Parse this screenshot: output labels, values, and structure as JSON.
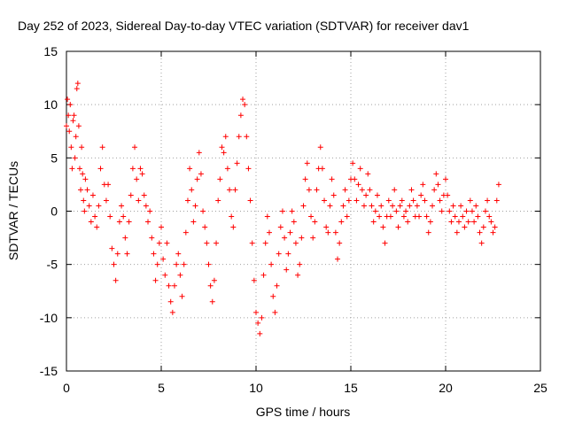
{
  "chart_data": {
    "type": "scatter",
    "title": "Day 252 of 2023, Sidereal Day-to-day VTEC variation (SDTVAR) for receiver dav1",
    "xlabel": "GPS time / hours",
    "ylabel": "SDTVAR / TECUs",
    "xlim": [
      0,
      25
    ],
    "ylim": [
      -15,
      15
    ],
    "xticks": [
      "0",
      "5",
      "10",
      "15",
      "20",
      "25"
    ],
    "yticks": [
      "-15",
      "-10",
      "-5",
      "0",
      "5",
      "10",
      "15"
    ],
    "grid": true,
    "marker": "+",
    "color": "#ff0000",
    "series": [
      {
        "name": "SDTVAR",
        "points": [
          [
            0.0,
            8.0
          ],
          [
            0.05,
            10.5
          ],
          [
            0.1,
            9.0
          ],
          [
            0.15,
            7.5
          ],
          [
            0.2,
            10.0
          ],
          [
            0.25,
            6.0
          ],
          [
            0.3,
            4.0
          ],
          [
            0.35,
            8.5
          ],
          [
            0.4,
            9.0
          ],
          [
            0.45,
            5.0
          ],
          [
            0.5,
            7.0
          ],
          [
            0.55,
            11.5
          ],
          [
            0.6,
            12.0
          ],
          [
            0.65,
            8.0
          ],
          [
            0.7,
            4.0
          ],
          [
            0.75,
            2.0
          ],
          [
            0.8,
            6.0
          ],
          [
            0.85,
            3.5
          ],
          [
            0.9,
            1.0
          ],
          [
            0.95,
            0.0
          ],
          [
            1.0,
            3.0
          ],
          [
            1.1,
            2.0
          ],
          [
            1.2,
            0.5
          ],
          [
            1.3,
            -1.0
          ],
          [
            1.4,
            1.5
          ],
          [
            1.5,
            -0.5
          ],
          [
            1.6,
            -1.5
          ],
          [
            1.7,
            0.5
          ],
          [
            1.8,
            4.0
          ],
          [
            1.9,
            6.0
          ],
          [
            2.0,
            2.5
          ],
          [
            2.1,
            1.0
          ],
          [
            2.2,
            2.5
          ],
          [
            2.3,
            -0.5
          ],
          [
            2.4,
            -3.5
          ],
          [
            2.5,
            -5.0
          ],
          [
            2.6,
            -6.5
          ],
          [
            2.7,
            -4.0
          ],
          [
            2.8,
            -1.0
          ],
          [
            2.9,
            0.5
          ],
          [
            3.0,
            -0.5
          ],
          [
            3.1,
            -2.5
          ],
          [
            3.2,
            -4.0
          ],
          [
            3.3,
            -1.0
          ],
          [
            3.4,
            1.5
          ],
          [
            3.5,
            4.0
          ],
          [
            3.6,
            6.0
          ],
          [
            3.7,
            3.0
          ],
          [
            3.8,
            1.0
          ],
          [
            3.9,
            4.0
          ],
          [
            4.0,
            3.5
          ],
          [
            4.1,
            1.5
          ],
          [
            4.2,
            0.5
          ],
          [
            4.3,
            -1.0
          ],
          [
            4.4,
            0.0
          ],
          [
            4.5,
            -2.5
          ],
          [
            4.6,
            -4.0
          ],
          [
            4.7,
            -6.5
          ],
          [
            4.8,
            -5.0
          ],
          [
            4.9,
            -3.0
          ],
          [
            5.0,
            -1.5
          ],
          [
            5.1,
            -4.5
          ],
          [
            5.2,
            -6.0
          ],
          [
            5.3,
            -3.0
          ],
          [
            5.4,
            -7.0
          ],
          [
            5.5,
            -8.5
          ],
          [
            5.6,
            -9.5
          ],
          [
            5.7,
            -7.0
          ],
          [
            5.8,
            -5.0
          ],
          [
            5.9,
            -4.0
          ],
          [
            6.0,
            -6.0
          ],
          [
            6.1,
            -8.0
          ],
          [
            6.2,
            -5.0
          ],
          [
            6.3,
            -2.0
          ],
          [
            6.4,
            1.0
          ],
          [
            6.5,
            4.0
          ],
          [
            6.6,
            2.0
          ],
          [
            6.7,
            -1.0
          ],
          [
            6.8,
            0.5
          ],
          [
            6.9,
            3.0
          ],
          [
            7.0,
            5.5
          ],
          [
            7.1,
            3.5
          ],
          [
            7.2,
            0.0
          ],
          [
            7.3,
            -1.5
          ],
          [
            7.4,
            -3.0
          ],
          [
            7.5,
            -5.0
          ],
          [
            7.6,
            -7.0
          ],
          [
            7.7,
            -8.5
          ],
          [
            7.8,
            -6.5
          ],
          [
            7.9,
            -3.0
          ],
          [
            8.0,
            1.0
          ],
          [
            8.1,
            3.0
          ],
          [
            8.2,
            6.0
          ],
          [
            8.3,
            5.5
          ],
          [
            8.4,
            7.0
          ],
          [
            8.5,
            4.0
          ],
          [
            8.6,
            2.0
          ],
          [
            8.7,
            -0.5
          ],
          [
            8.8,
            -1.5
          ],
          [
            8.9,
            2.0
          ],
          [
            9.0,
            4.5
          ],
          [
            9.1,
            7.0
          ],
          [
            9.2,
            9.0
          ],
          [
            9.3,
            10.5
          ],
          [
            9.4,
            10.0
          ],
          [
            9.5,
            7.0
          ],
          [
            9.6,
            4.0
          ],
          [
            9.7,
            1.0
          ],
          [
            9.8,
            -3.0
          ],
          [
            9.9,
            -6.5
          ],
          [
            10.0,
            -9.5
          ],
          [
            10.1,
            -10.5
          ],
          [
            10.2,
            -11.5
          ],
          [
            10.3,
            -10.0
          ],
          [
            10.4,
            -6.0
          ],
          [
            10.5,
            -3.0
          ],
          [
            10.6,
            -0.5
          ],
          [
            10.7,
            -2.0
          ],
          [
            10.8,
            -5.0
          ],
          [
            10.9,
            -8.0
          ],
          [
            11.0,
            -9.5
          ],
          [
            11.1,
            -7.0
          ],
          [
            11.2,
            -4.0
          ],
          [
            11.3,
            -1.5
          ],
          [
            11.4,
            0.0
          ],
          [
            11.5,
            -2.5
          ],
          [
            11.6,
            -5.5
          ],
          [
            11.7,
            -4.0
          ],
          [
            11.8,
            -2.0
          ],
          [
            11.9,
            0.0
          ],
          [
            12.0,
            -1.0
          ],
          [
            12.1,
            -3.0
          ],
          [
            12.2,
            -6.0
          ],
          [
            12.3,
            -5.0
          ],
          [
            12.4,
            -2.5
          ],
          [
            12.5,
            0.5
          ],
          [
            12.6,
            3.0
          ],
          [
            12.7,
            4.5
          ],
          [
            12.8,
            2.0
          ],
          [
            12.9,
            -0.5
          ],
          [
            13.0,
            -2.5
          ],
          [
            13.1,
            -1.0
          ],
          [
            13.2,
            2.0
          ],
          [
            13.3,
            4.0
          ],
          [
            13.4,
            6.0
          ],
          [
            13.5,
            4.0
          ],
          [
            13.6,
            1.0
          ],
          [
            13.7,
            -1.5
          ],
          [
            13.8,
            -2.0
          ],
          [
            13.9,
            0.5
          ],
          [
            14.0,
            3.0
          ],
          [
            14.1,
            1.5
          ],
          [
            14.2,
            -2.0
          ],
          [
            14.3,
            -4.5
          ],
          [
            14.4,
            -3.0
          ],
          [
            14.5,
            -1.0
          ],
          [
            14.6,
            0.5
          ],
          [
            14.7,
            2.0
          ],
          [
            14.8,
            -0.5
          ],
          [
            14.9,
            1.0
          ],
          [
            15.0,
            3.0
          ],
          [
            15.1,
            4.5
          ],
          [
            15.2,
            3.0
          ],
          [
            15.3,
            1.0
          ],
          [
            15.4,
            2.5
          ],
          [
            15.5,
            4.0
          ],
          [
            15.6,
            2.0
          ],
          [
            15.7,
            0.5
          ],
          [
            15.8,
            1.5
          ],
          [
            15.9,
            3.5
          ],
          [
            16.0,
            2.0
          ],
          [
            16.1,
            0.5
          ],
          [
            16.2,
            -1.0
          ],
          [
            16.3,
            0.0
          ],
          [
            16.4,
            1.5
          ],
          [
            16.5,
            -0.5
          ],
          [
            16.6,
            0.5
          ],
          [
            16.7,
            -1.5
          ],
          [
            16.8,
            -3.0
          ],
          [
            16.9,
            -0.5
          ],
          [
            17.0,
            1.0
          ],
          [
            17.1,
            -0.5
          ],
          [
            17.2,
            0.5
          ],
          [
            17.3,
            2.0
          ],
          [
            17.4,
            0.0
          ],
          [
            17.5,
            -1.5
          ],
          [
            17.6,
            0.5
          ],
          [
            17.7,
            1.0
          ],
          [
            17.8,
            -0.5
          ],
          [
            17.9,
            0.0
          ],
          [
            18.0,
            -1.0
          ],
          [
            18.1,
            0.5
          ],
          [
            18.2,
            2.0
          ],
          [
            18.3,
            1.0
          ],
          [
            18.4,
            -0.5
          ],
          [
            18.5,
            0.5
          ],
          [
            18.6,
            -0.5
          ],
          [
            18.7,
            1.5
          ],
          [
            18.8,
            2.5
          ],
          [
            18.9,
            1.0
          ],
          [
            19.0,
            -0.5
          ],
          [
            19.1,
            -2.0
          ],
          [
            19.2,
            -1.0
          ],
          [
            19.3,
            0.5
          ],
          [
            19.4,
            2.0
          ],
          [
            19.5,
            3.5
          ],
          [
            19.6,
            2.5
          ],
          [
            19.7,
            1.0
          ],
          [
            19.8,
            0.0
          ],
          [
            19.9,
            1.5
          ],
          [
            20.0,
            3.0
          ],
          [
            20.1,
            1.5
          ],
          [
            20.2,
            0.0
          ],
          [
            20.3,
            -1.0
          ],
          [
            20.4,
            0.5
          ],
          [
            20.5,
            -0.5
          ],
          [
            20.6,
            -2.0
          ],
          [
            20.7,
            -1.0
          ],
          [
            20.8,
            0.5
          ],
          [
            20.9,
            -0.5
          ],
          [
            21.0,
            -1.5
          ],
          [
            21.1,
            0.0
          ],
          [
            21.2,
            -1.0
          ],
          [
            21.3,
            1.0
          ],
          [
            21.4,
            0.0
          ],
          [
            21.5,
            -1.0
          ],
          [
            21.6,
            0.5
          ],
          [
            21.7,
            -0.5
          ],
          [
            21.8,
            -2.0
          ],
          [
            21.9,
            -3.0
          ],
          [
            22.0,
            -1.5
          ],
          [
            22.1,
            0.0
          ],
          [
            22.2,
            1.0
          ],
          [
            22.3,
            -0.5
          ],
          [
            22.4,
            -1.0
          ],
          [
            22.5,
            -2.0
          ],
          [
            22.6,
            -1.5
          ],
          [
            22.7,
            1.0
          ],
          [
            22.8,
            2.5
          ]
        ]
      }
    ]
  }
}
